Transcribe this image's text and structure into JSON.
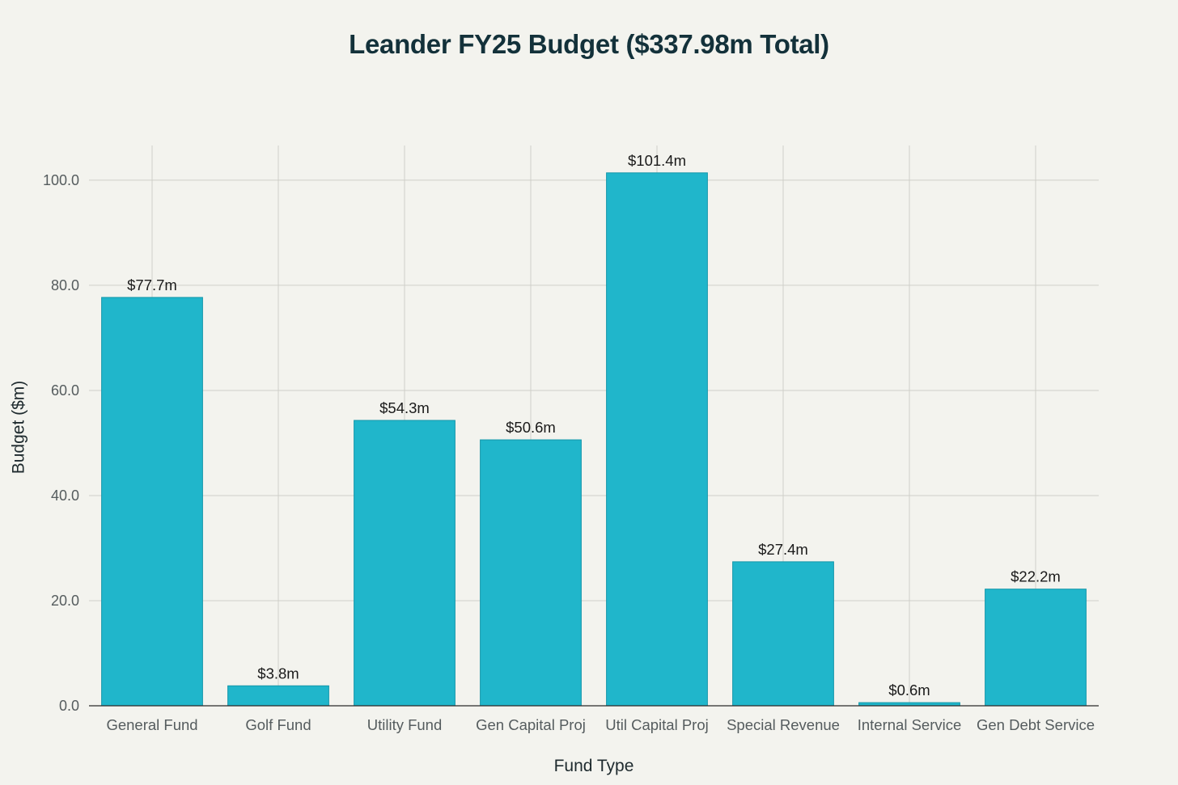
{
  "chart_data": {
    "type": "bar",
    "title": "Leander FY25 Budget ($337.98m Total)",
    "xlabel": "Fund Type",
    "ylabel": "Budget ($m)",
    "categories": [
      "General Fund",
      "Golf Fund",
      "Utility Fund",
      "Gen Capital Proj",
      "Util Capital Proj",
      "Special Revenue",
      "Internal Service",
      "Gen Debt Service"
    ],
    "values": [
      77.7,
      3.8,
      54.3,
      50.6,
      101.4,
      27.4,
      0.6,
      22.2
    ],
    "data_labels": [
      "$77.7m",
      "$3.8m",
      "$54.3m",
      "$50.6m",
      "$101.4m",
      "$27.4m",
      "$0.6m",
      "$22.2m"
    ],
    "yticks": [
      0,
      20,
      40,
      60,
      80,
      100
    ],
    "ytick_labels": [
      "0.0",
      "20.0",
      "40.0",
      "60.0",
      "80.0",
      "100.0"
    ],
    "ylim": [
      0,
      106.6
    ],
    "grid": true,
    "legend": "none",
    "bar_color": "#20b6cb",
    "bar_edge_color": "#1597aa"
  }
}
